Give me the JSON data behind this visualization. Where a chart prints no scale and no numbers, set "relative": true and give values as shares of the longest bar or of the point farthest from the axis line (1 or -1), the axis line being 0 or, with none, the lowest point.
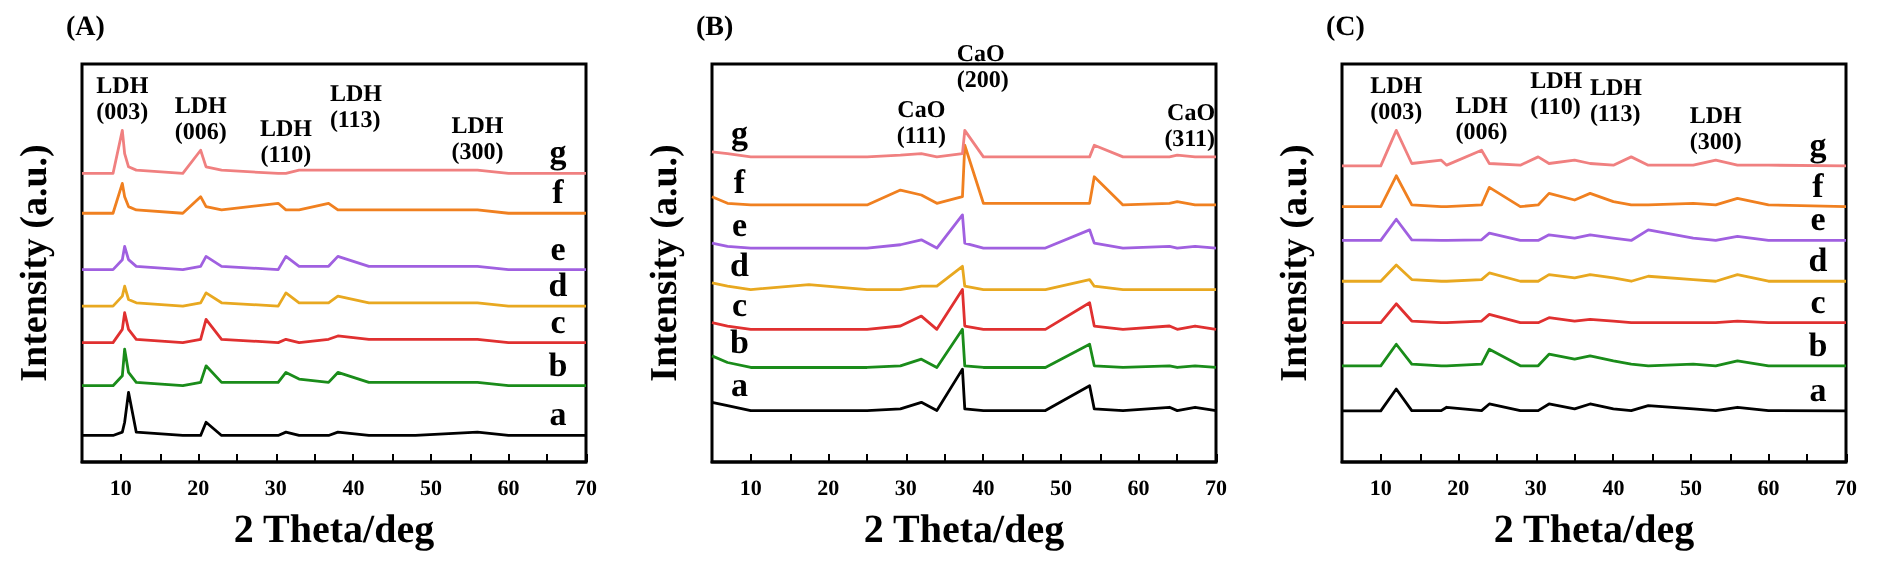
{
  "chart_data": [
    {
      "type": "line",
      "title": "(A)",
      "xlabel": "2 Theta/deg",
      "ylabel": "Intensity (a.u.)",
      "relative": true,
      "marker": "none",
      "tick_labels": "x",
      "xlim": [
        5,
        70
      ],
      "xticks": [
        10,
        {
          "value": 15,
          "label": null
        },
        20,
        {
          "value": 25,
          "label": null
        },
        30,
        {
          "value": 35,
          "label": null
        },
        40,
        {
          "value": 45,
          "label": null
        },
        50,
        {
          "value": 55,
          "label": null
        },
        60,
        {
          "value": 65,
          "label": null
        },
        70
      ],
      "x": [
        5,
        9,
        10.2,
        10.5,
        11,
        12,
        18,
        20.3,
        21,
        23,
        30.3,
        31.3,
        33,
        36.8,
        38,
        42,
        48,
        56,
        60,
        70
      ],
      "series": [
        {
          "name": "a",
          "color": "#000000",
          "values": [
            0.08,
            0.08,
            0.09,
            0.12,
            0.21,
            0.09,
            0.08,
            0.08,
            0.12,
            0.08,
            0.08,
            0.09,
            0.08,
            0.08,
            0.09,
            0.08,
            0.08,
            0.09,
            0.08,
            0.08
          ]
        },
        {
          "name": "b",
          "color": "#1a8c1a",
          "values": [
            0.23,
            0.23,
            0.26,
            0.34,
            0.27,
            0.24,
            0.23,
            0.24,
            0.29,
            0.24,
            0.24,
            0.27,
            0.25,
            0.24,
            0.27,
            0.24,
            0.24,
            0.24,
            0.23,
            0.23
          ]
        },
        {
          "name": "c",
          "color": "#e03030",
          "values": [
            0.36,
            0.36,
            0.4,
            0.45,
            0.4,
            0.37,
            0.36,
            0.37,
            0.43,
            0.37,
            0.36,
            0.37,
            0.36,
            0.37,
            0.38,
            0.37,
            0.37,
            0.37,
            0.36,
            0.36
          ]
        },
        {
          "name": "d",
          "color": "#e8a820",
          "values": [
            0.47,
            0.47,
            0.5,
            0.53,
            0.49,
            0.48,
            0.47,
            0.48,
            0.51,
            0.48,
            0.47,
            0.51,
            0.48,
            0.48,
            0.5,
            0.48,
            0.48,
            0.48,
            0.47,
            0.47
          ]
        },
        {
          "name": "e",
          "color": "#a060e0",
          "values": [
            0.58,
            0.58,
            0.61,
            0.65,
            0.61,
            0.59,
            0.58,
            0.59,
            0.62,
            0.59,
            0.58,
            0.62,
            0.59,
            0.59,
            0.62,
            0.59,
            0.59,
            0.59,
            0.58,
            0.58
          ]
        },
        {
          "name": "f",
          "color": "#f08020",
          "values": [
            0.75,
            0.75,
            0.84,
            0.8,
            0.77,
            0.76,
            0.75,
            0.8,
            0.77,
            0.76,
            0.78,
            0.76,
            0.76,
            0.78,
            0.76,
            0.76,
            0.76,
            0.76,
            0.75,
            0.75
          ]
        },
        {
          "name": "g",
          "color": "#f08080",
          "values": [
            0.87,
            0.87,
            1.0,
            0.93,
            0.89,
            0.88,
            0.87,
            0.94,
            0.89,
            0.88,
            0.87,
            0.87,
            0.88,
            0.88,
            0.88,
            0.88,
            0.88,
            0.88,
            0.87,
            0.87
          ]
        }
      ],
      "annotations": [
        {
          "text": "LDH (003)",
          "x": 10.2,
          "y": 1.0
        },
        {
          "text": "LDH (006)",
          "x": 20.3,
          "y": 0.94
        },
        {
          "text": "LDH (110)",
          "x": 31.3,
          "y": 0.87
        },
        {
          "text": "LDH (113)",
          "x": 38,
          "y": 0.88
        },
        {
          "text": "LDH (300)",
          "x": 56,
          "y": 0.88
        }
      ]
    },
    {
      "type": "line",
      "title": "(B)",
      "xlabel": "2 Theta/deg",
      "ylabel": "Intensity (a.u.)",
      "relative": true,
      "marker": "none",
      "tick_labels": "x",
      "xlim": [
        5,
        70
      ],
      "xticks": [
        10,
        {
          "value": 15,
          "label": null
        },
        20,
        {
          "value": 25,
          "label": null
        },
        30,
        {
          "value": 35,
          "label": null
        },
        40,
        {
          "value": 45,
          "label": null
        },
        50,
        {
          "value": 55,
          "label": null
        },
        60,
        {
          "value": 65,
          "label": null
        },
        70
      ],
      "x": [
        5,
        7,
        10,
        17.5,
        25,
        29.3,
        32,
        34,
        37.3,
        37.6,
        40,
        48,
        53.7,
        54.3,
        58,
        64,
        65,
        67.3,
        70
      ],
      "series": [
        {
          "name": "a",
          "color": "#000000",
          "values": [
            0.18,
            0.17,
            0.155,
            0.155,
            0.155,
            0.16,
            0.18,
            0.155,
            0.28,
            0.16,
            0.155,
            0.155,
            0.23,
            0.16,
            0.155,
            0.165,
            0.155,
            0.165,
            0.155
          ]
        },
        {
          "name": "b",
          "color": "#1a8c1a",
          "values": [
            0.32,
            0.3,
            0.285,
            0.285,
            0.285,
            0.29,
            0.31,
            0.285,
            0.4,
            0.29,
            0.285,
            0.285,
            0.355,
            0.29,
            0.285,
            0.29,
            0.285,
            0.29,
            0.285
          ]
        },
        {
          "name": "c",
          "color": "#e03030",
          "values": [
            0.42,
            0.41,
            0.4,
            0.4,
            0.4,
            0.41,
            0.44,
            0.4,
            0.52,
            0.41,
            0.4,
            0.4,
            0.48,
            0.41,
            0.4,
            0.41,
            0.4,
            0.41,
            0.4
          ]
        },
        {
          "name": "d",
          "color": "#e8a820",
          "values": [
            0.54,
            0.53,
            0.52,
            0.535,
            0.52,
            0.52,
            0.53,
            0.53,
            0.59,
            0.53,
            0.52,
            0.52,
            0.55,
            0.53,
            0.52,
            0.52,
            0.52,
            0.52,
            0.52
          ]
        },
        {
          "name": "e",
          "color": "#a060e0",
          "values": [
            0.66,
            0.65,
            0.645,
            0.645,
            0.645,
            0.655,
            0.67,
            0.645,
            0.745,
            0.66,
            0.645,
            0.645,
            0.7,
            0.66,
            0.645,
            0.65,
            0.645,
            0.65,
            0.645
          ]
        },
        {
          "name": "f",
          "color": "#f08020",
          "values": [
            0.8,
            0.78,
            0.775,
            0.775,
            0.775,
            0.82,
            0.805,
            0.78,
            0.8,
            0.955,
            0.78,
            0.78,
            0.78,
            0.86,
            0.775,
            0.78,
            0.785,
            0.775,
            0.775
          ]
        },
        {
          "name": "g",
          "color": "#f08080",
          "values": [
            0.935,
            0.93,
            0.92,
            0.92,
            0.92,
            0.925,
            0.93,
            0.92,
            0.93,
            1.0,
            0.92,
            0.92,
            0.92,
            0.955,
            0.92,
            0.92,
            0.925,
            0.92,
            0.92
          ]
        }
      ],
      "annotations": [
        {
          "text": "CaO (111)",
          "x": 32,
          "y": 0.93
        },
        {
          "text": "CaO (200)",
          "x": 37.6,
          "y": 1.0
        },
        {
          "text": "CaO (311)",
          "x": 67.3,
          "y": 0.92
        }
      ]
    },
    {
      "type": "line",
      "title": "(C)",
      "xlabel": "2 Theta/deg",
      "ylabel": "Intensity (a.u.)",
      "relative": true,
      "marker": "none",
      "tick_labels": "x",
      "xlim": [
        5,
        70
      ],
      "xticks": [
        10,
        {
          "value": 15,
          "label": null
        },
        20,
        {
          "value": 25,
          "label": null
        },
        30,
        {
          "value": 35,
          "label": null
        },
        40,
        {
          "value": 45,
          "label": null
        },
        50,
        {
          "value": 55,
          "label": null
        },
        60,
        {
          "value": 65,
          "label": null
        },
        70
      ],
      "x": [
        5,
        10,
        12,
        14,
        17.8,
        18.5,
        23,
        24,
        28,
        30.3,
        31.7,
        35,
        37,
        40,
        42.3,
        44.5,
        50.3,
        53.2,
        56,
        60,
        70
      ],
      "series": [
        {
          "name": "a",
          "color": "#000000",
          "values": [
            0.154,
            0.154,
            0.22,
            0.155,
            0.155,
            0.165,
            0.155,
            0.175,
            0.155,
            0.155,
            0.175,
            0.16,
            0.175,
            0.16,
            0.155,
            0.17,
            0.16,
            0.155,
            0.165,
            0.155,
            0.154
          ]
        },
        {
          "name": "b",
          "color": "#1a8c1a",
          "values": [
            0.29,
            0.29,
            0.355,
            0.295,
            0.29,
            0.29,
            0.295,
            0.34,
            0.29,
            0.29,
            0.325,
            0.31,
            0.32,
            0.305,
            0.295,
            0.29,
            0.295,
            0.29,
            0.305,
            0.29,
            0.29
          ]
        },
        {
          "name": "c",
          "color": "#e03030",
          "values": [
            0.42,
            0.42,
            0.477,
            0.425,
            0.42,
            0.42,
            0.425,
            0.445,
            0.42,
            0.42,
            0.435,
            0.425,
            0.43,
            0.425,
            0.42,
            0.42,
            0.42,
            0.42,
            0.425,
            0.42,
            0.42
          ]
        },
        {
          "name": "d",
          "color": "#e8a820",
          "values": [
            0.545,
            0.545,
            0.594,
            0.55,
            0.545,
            0.545,
            0.55,
            0.57,
            0.545,
            0.545,
            0.565,
            0.555,
            0.565,
            0.555,
            0.545,
            0.56,
            0.55,
            0.545,
            0.565,
            0.545,
            0.545
          ]
        },
        {
          "name": "e",
          "color": "#a060e0",
          "values": [
            0.668,
            0.668,
            0.732,
            0.67,
            0.668,
            0.668,
            0.67,
            0.69,
            0.668,
            0.668,
            0.685,
            0.675,
            0.685,
            0.675,
            0.668,
            0.7,
            0.675,
            0.668,
            0.68,
            0.668,
            0.668
          ]
        },
        {
          "name": "f",
          "color": "#f08020",
          "values": [
            0.77,
            0.77,
            0.863,
            0.775,
            0.77,
            0.77,
            0.775,
            0.828,
            0.77,
            0.775,
            0.81,
            0.79,
            0.81,
            0.785,
            0.775,
            0.775,
            0.78,
            0.775,
            0.795,
            0.775,
            0.77
          ]
        },
        {
          "name": "g",
          "color": "#f08080",
          "values": [
            0.893,
            0.893,
            1.0,
            0.9,
            0.91,
            0.895,
            0.94,
            0.9,
            0.895,
            0.92,
            0.9,
            0.91,
            0.9,
            0.895,
            0.92,
            0.895,
            0.895,
            0.91,
            0.895,
            0.895,
            0.893
          ]
        }
      ],
      "annotations": [
        {
          "text": "LDH (003)",
          "x": 12,
          "y": 1.0
        },
        {
          "text": "LDH (006)",
          "x": 23,
          "y": 0.94
        },
        {
          "text": "LDH (110)",
          "x": 30.3,
          "y": 0.92
        },
        {
          "text": "LDH (113)",
          "x": 38,
          "y": 0.9
        },
        {
          "text": "LDH (300)",
          "x": 53.2,
          "y": 0.91
        }
      ]
    }
  ]
}
